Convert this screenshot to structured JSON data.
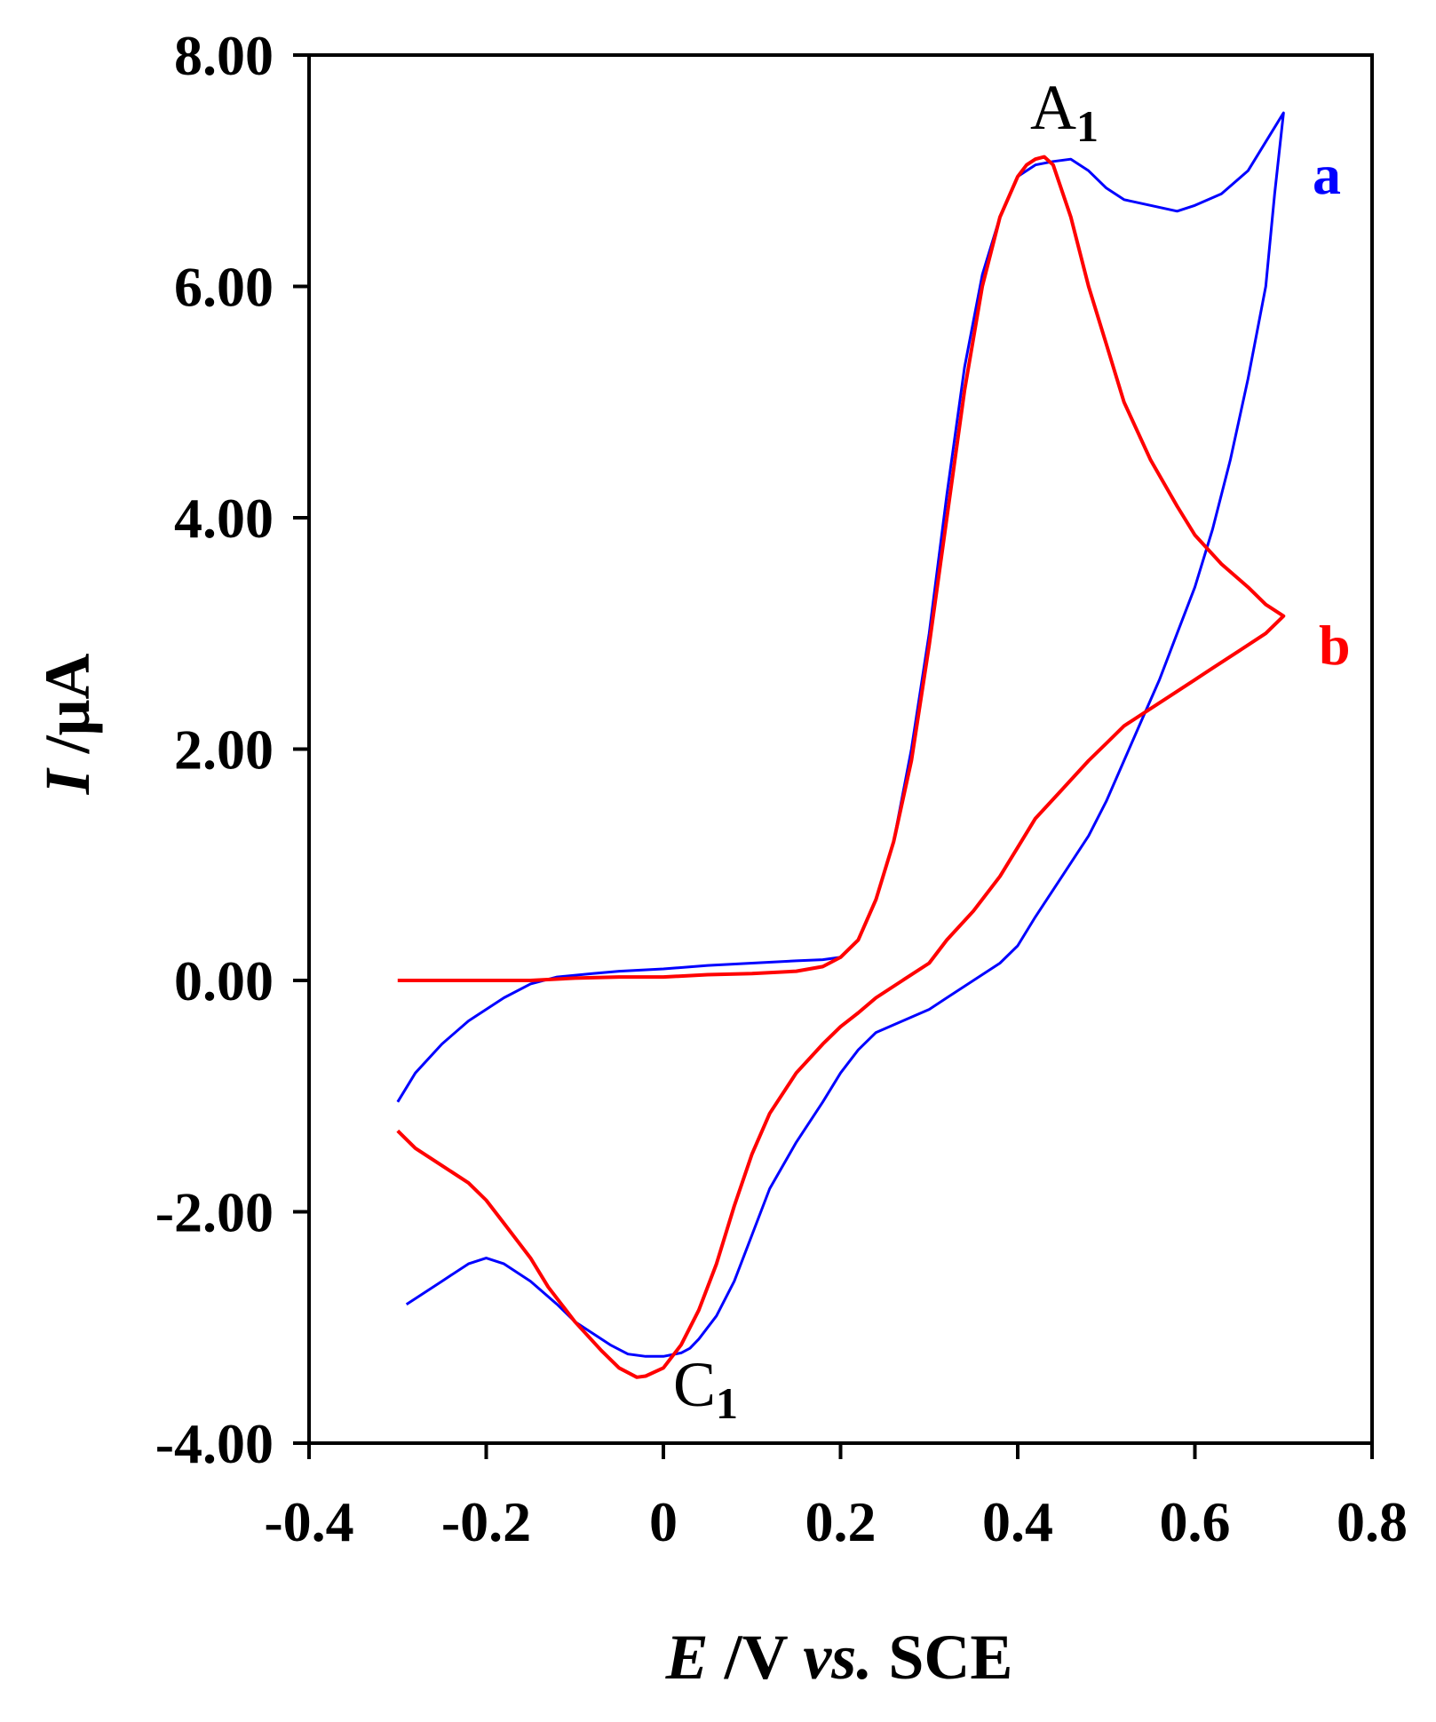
{
  "chart_data": {
    "type": "line",
    "title": "",
    "xlabel": {
      "italic": "E",
      "rest": " /V ",
      "italic2": "vs.",
      "rest2": " SCE"
    },
    "ylabel": {
      "italic": "I",
      "rest": " /μA"
    },
    "xlim": [
      -0.4,
      0.8
    ],
    "ylim": [
      -4.0,
      8.0
    ],
    "x_ticks": [
      -0.4,
      -0.2,
      0,
      0.2,
      0.4,
      0.6,
      0.8
    ],
    "x_tick_labels": [
      "-0.4",
      "-0.2",
      "0",
      "0.2",
      "0.4",
      "0.6",
      "0.8"
    ],
    "y_ticks": [
      8.0,
      6.0,
      4.0,
      2.0,
      0.0,
      -2.0,
      -4.0
    ],
    "y_tick_labels": [
      "8.00",
      "6.00",
      "4.00",
      "2.00",
      "0.00",
      "-2.00",
      "-4.00"
    ],
    "grid": false,
    "annotations": [
      {
        "text": "A",
        "sub": "1",
        "x": 0.42,
        "y": 7.5
      },
      {
        "text": "C",
        "sub": "1",
        "x": 0.02,
        "y": -3.75
      }
    ],
    "series": [
      {
        "name": "a",
        "color": "#0000ff",
        "x": [
          -0.3,
          -0.28,
          -0.25,
          -0.22,
          -0.18,
          -0.15,
          -0.12,
          -0.08,
          -0.05,
          0.0,
          0.05,
          0.1,
          0.15,
          0.18,
          0.2,
          0.22,
          0.24,
          0.26,
          0.28,
          0.3,
          0.32,
          0.34,
          0.36,
          0.38,
          0.4,
          0.42,
          0.44,
          0.46,
          0.48,
          0.5,
          0.52,
          0.55,
          0.58,
          0.6,
          0.63,
          0.66,
          0.68,
          0.7,
          0.69,
          0.68,
          0.66,
          0.64,
          0.62,
          0.6,
          0.58,
          0.56,
          0.54,
          0.52,
          0.5,
          0.48,
          0.45,
          0.42,
          0.4,
          0.38,
          0.35,
          0.32,
          0.3,
          0.27,
          0.24,
          0.22,
          0.2,
          0.18,
          0.15,
          0.12,
          0.1,
          0.08,
          0.06,
          0.04,
          0.03,
          0.02,
          0.0,
          -0.02,
          -0.04,
          -0.06,
          -0.08,
          -0.1,
          -0.12,
          -0.15,
          -0.18,
          -0.2,
          -0.22,
          -0.25,
          -0.28,
          -0.29
        ],
        "y": [
          -1.05,
          -0.8,
          -0.55,
          -0.35,
          -0.15,
          -0.03,
          0.03,
          0.06,
          0.08,
          0.1,
          0.13,
          0.15,
          0.17,
          0.18,
          0.2,
          0.35,
          0.7,
          1.2,
          2.0,
          3.0,
          4.2,
          5.3,
          6.1,
          6.6,
          6.95,
          7.05,
          7.08,
          7.1,
          7.0,
          6.85,
          6.75,
          6.7,
          6.65,
          6.7,
          6.8,
          7.0,
          7.25,
          7.5,
          6.8,
          6.0,
          5.2,
          4.5,
          3.9,
          3.4,
          3.0,
          2.6,
          2.25,
          1.9,
          1.55,
          1.25,
          0.9,
          0.55,
          0.3,
          0.15,
          0.0,
          -0.15,
          -0.25,
          -0.35,
          -0.45,
          -0.6,
          -0.8,
          -1.05,
          -1.4,
          -1.8,
          -2.2,
          -2.6,
          -2.9,
          -3.1,
          -3.18,
          -3.22,
          -3.25,
          -3.25,
          -3.23,
          -3.15,
          -3.05,
          -2.95,
          -2.8,
          -2.6,
          -2.45,
          -2.4,
          -2.45,
          -2.6,
          -2.75,
          -2.8
        ]
      },
      {
        "name": "b",
        "color": "#ff0000",
        "x": [
          -0.3,
          -0.25,
          -0.2,
          -0.15,
          -0.1,
          -0.05,
          0.0,
          0.05,
          0.1,
          0.15,
          0.18,
          0.2,
          0.22,
          0.24,
          0.26,
          0.28,
          0.3,
          0.32,
          0.34,
          0.36,
          0.38,
          0.4,
          0.41,
          0.42,
          0.43,
          0.44,
          0.46,
          0.48,
          0.5,
          0.52,
          0.55,
          0.58,
          0.6,
          0.63,
          0.66,
          0.68,
          0.7,
          0.68,
          0.65,
          0.62,
          0.6,
          0.57,
          0.54,
          0.52,
          0.5,
          0.48,
          0.45,
          0.42,
          0.4,
          0.38,
          0.35,
          0.32,
          0.3,
          0.27,
          0.24,
          0.22,
          0.2,
          0.18,
          0.15,
          0.12,
          0.1,
          0.08,
          0.06,
          0.04,
          0.02,
          0.0,
          -0.02,
          -0.03,
          -0.05,
          -0.07,
          -0.1,
          -0.13,
          -0.15,
          -0.18,
          -0.2,
          -0.22,
          -0.25,
          -0.28,
          -0.3
        ],
        "y": [
          0.0,
          0.0,
          0.0,
          0.0,
          0.02,
          0.03,
          0.03,
          0.05,
          0.06,
          0.08,
          0.12,
          0.2,
          0.35,
          0.7,
          1.2,
          1.9,
          2.9,
          4.0,
          5.1,
          6.0,
          6.6,
          6.95,
          7.05,
          7.1,
          7.12,
          7.05,
          6.6,
          6.0,
          5.5,
          5.0,
          4.5,
          4.1,
          3.85,
          3.6,
          3.4,
          3.25,
          3.15,
          3.0,
          2.85,
          2.7,
          2.6,
          2.45,
          2.3,
          2.2,
          2.05,
          1.9,
          1.65,
          1.4,
          1.15,
          0.9,
          0.6,
          0.35,
          0.15,
          0.0,
          -0.15,
          -0.28,
          -0.4,
          -0.55,
          -0.8,
          -1.15,
          -1.5,
          -1.95,
          -2.45,
          -2.85,
          -3.15,
          -3.35,
          -3.42,
          -3.43,
          -3.35,
          -3.2,
          -2.95,
          -2.65,
          -2.4,
          -2.1,
          -1.9,
          -1.75,
          -1.6,
          -1.45,
          -1.3
        ]
      }
    ],
    "legend": [
      {
        "text": "a",
        "color": "#0000ff",
        "placement": "right-top"
      },
      {
        "text": "b",
        "color": "#ff0000",
        "placement": "right-middle"
      }
    ]
  }
}
